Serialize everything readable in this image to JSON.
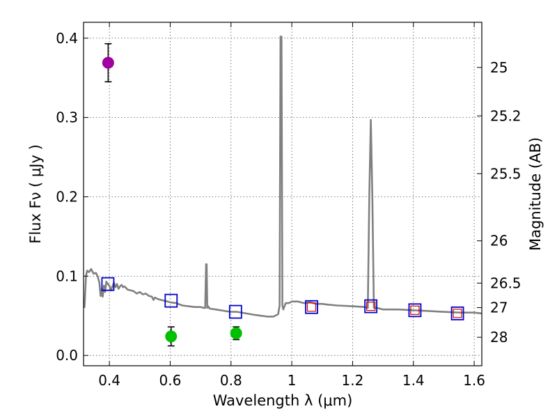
{
  "chart_data": {
    "type": "scatter",
    "xlabel": "Wavelength  λ (μm)",
    "ylabel": "Flux  Fν  ( μJy )",
    "ylabel_right": "Magnitude (AB)",
    "xlim": [
      0.315,
      1.625
    ],
    "ylim": [
      -0.013,
      0.42
    ],
    "grid": true,
    "x_ticks": [
      0.4,
      0.6,
      0.8,
      1.0,
      1.2,
      1.4,
      1.6
    ],
    "x_tick_labels": [
      "0.4",
      "0.6",
      "0.8",
      "1",
      "1.2",
      "1.4",
      "1.6"
    ],
    "y_ticks": [
      0.0,
      0.1,
      0.2,
      0.3,
      0.4
    ],
    "y_tick_labels": [
      "0.0",
      "0.1",
      "0.2",
      "0.3",
      "0.4"
    ],
    "magnitude_ticks": [
      {
        "label": "25",
        "flux": 0.3631
      },
      {
        "label": "25.2",
        "flux": 0.302
      },
      {
        "label": "25.5",
        "flux": 0.2291
      },
      {
        "label": "26",
        "flux": 0.1445
      },
      {
        "label": "26.5",
        "flux": 0.0912
      },
      {
        "label": "27",
        "flux": 0.0603
      },
      {
        "label": "28",
        "flux": 0.0229
      }
    ],
    "series": [
      {
        "name": "Model spectrum",
        "kind": "line",
        "color": "#808080",
        "x": [
          0.318,
          0.323,
          0.327,
          0.333,
          0.34,
          0.348,
          0.356,
          0.362,
          0.367,
          0.371,
          0.374,
          0.378,
          0.382,
          0.386,
          0.39,
          0.395,
          0.4,
          0.405,
          0.41,
          0.415,
          0.42,
          0.425,
          0.43,
          0.435,
          0.44,
          0.445,
          0.45,
          0.46,
          0.47,
          0.48,
          0.49,
          0.5,
          0.51,
          0.52,
          0.53,
          0.54,
          0.545,
          0.55,
          0.56,
          0.57,
          0.58,
          0.59,
          0.6,
          0.62,
          0.64,
          0.66,
          0.68,
          0.7,
          0.71,
          0.715,
          0.718,
          0.72,
          0.722,
          0.725,
          0.73,
          0.75,
          0.78,
          0.8,
          0.82,
          0.85,
          0.88,
          0.9,
          0.92,
          0.94,
          0.955,
          0.96,
          0.963,
          0.966,
          0.969,
          0.972,
          0.976,
          0.98,
          0.99,
          1.0,
          1.02,
          1.04,
          1.06,
          1.08,
          1.1,
          1.12,
          1.15,
          1.2,
          1.24,
          1.25,
          1.255,
          1.26,
          1.265,
          1.27,
          1.275,
          1.28,
          1.3,
          1.35,
          1.4,
          1.45,
          1.5,
          1.55,
          1.6,
          1.625
        ],
        "y": [
          0.06,
          0.1,
          0.107,
          0.105,
          0.109,
          0.103,
          0.104,
          0.099,
          0.092,
          0.075,
          0.083,
          0.074,
          0.088,
          0.08,
          0.093,
          0.09,
          0.088,
          0.082,
          0.087,
          0.092,
          0.086,
          0.09,
          0.084,
          0.087,
          0.089,
          0.086,
          0.087,
          0.083,
          0.082,
          0.081,
          0.078,
          0.08,
          0.077,
          0.078,
          0.075,
          0.074,
          0.07,
          0.073,
          0.071,
          0.07,
          0.069,
          0.068,
          0.067,
          0.066,
          0.063,
          0.062,
          0.061,
          0.061,
          0.06,
          0.06,
          0.115,
          0.115,
          0.06,
          0.062,
          0.059,
          0.058,
          0.056,
          0.055,
          0.055,
          0.053,
          0.051,
          0.05,
          0.049,
          0.049,
          0.052,
          0.063,
          0.402,
          0.402,
          0.063,
          0.058,
          0.062,
          0.066,
          0.066,
          0.068,
          0.068,
          0.066,
          0.067,
          0.065,
          0.065,
          0.064,
          0.063,
          0.062,
          0.061,
          0.06,
          0.2,
          0.297,
          0.2,
          0.06,
          0.06,
          0.06,
          0.058,
          0.058,
          0.057,
          0.056,
          0.055,
          0.054,
          0.054,
          0.053
        ]
      },
      {
        "name": "Magenta photometry",
        "kind": "points",
        "marker": "circle",
        "color": "#a000a0",
        "x": [
          0.396
        ],
        "y": [
          0.369
        ],
        "yerr": [
          0.024
        ]
      },
      {
        "name": "Green photometry",
        "kind": "points",
        "marker": "circle",
        "color": "#00c000",
        "x": [
          0.603,
          0.817
        ],
        "y": [
          0.024,
          0.028
        ],
        "yerr": [
          0.012,
          0.008
        ]
      },
      {
        "name": "Model band flux (blue squares)",
        "kind": "points",
        "marker": "square-blue",
        "color": "#0000cc",
        "x": [
          0.395,
          0.603,
          0.815,
          1.065,
          1.26,
          1.405,
          1.545
        ],
        "y": [
          0.09,
          0.069,
          0.055,
          0.061,
          0.062,
          0.057,
          0.053
        ]
      },
      {
        "name": "Model band flux (red squares)",
        "kind": "points",
        "marker": "square-red",
        "color": "#cc0000",
        "x": [
          1.065,
          1.26,
          1.405,
          1.545
        ],
        "y": [
          0.061,
          0.062,
          0.057,
          0.053
        ]
      }
    ]
  }
}
